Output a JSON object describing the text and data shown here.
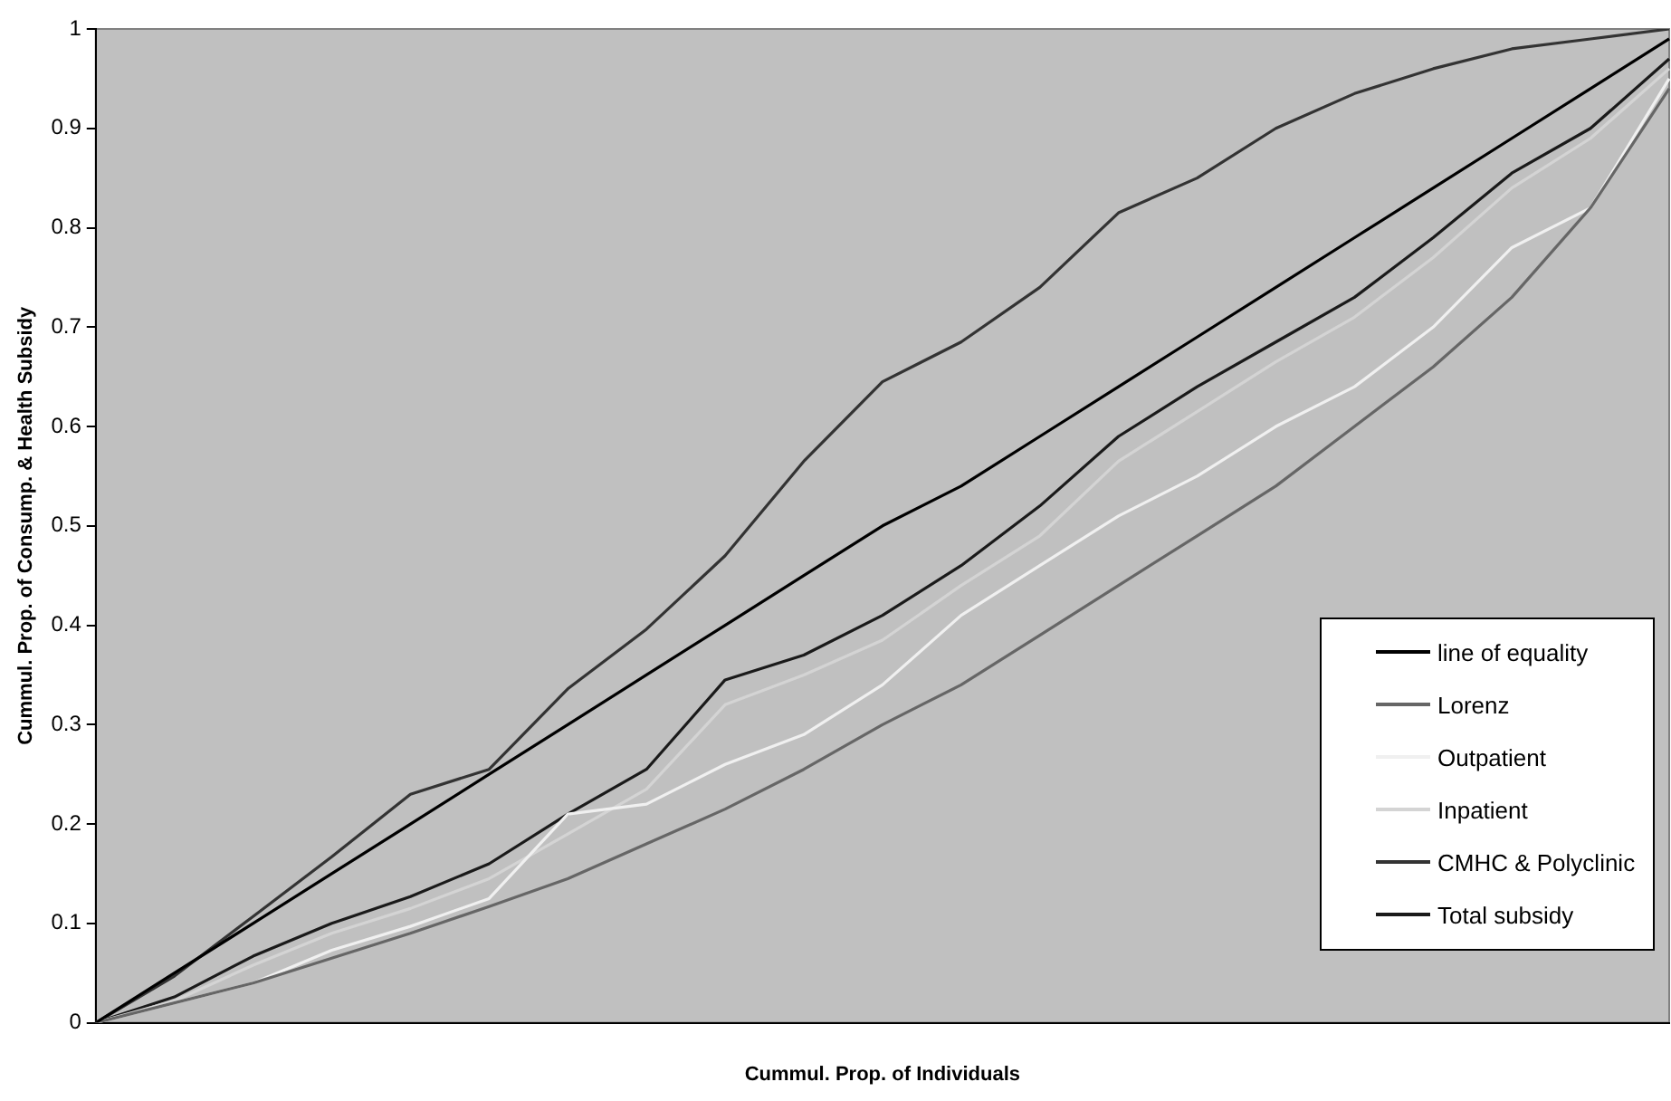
{
  "chart_data": {
    "type": "line",
    "xlabel": "Cummul. Prop. of Individuals",
    "ylabel": "Cummul. Prop. of Consump. & Health Subsidy",
    "categories": [
      null,
      null,
      null,
      null,
      null,
      null,
      null,
      null,
      null,
      null,
      null,
      null,
      null,
      null,
      null,
      null,
      null,
      null,
      null,
      null,
      null
    ],
    "ylim": [
      0,
      1
    ],
    "yticks": [
      0,
      0.1,
      0.2,
      0.3,
      0.4,
      0.5,
      0.6,
      0.7,
      0.8,
      0.9,
      1
    ],
    "grid": false,
    "legend": "bottom right",
    "tick_labels": "y",
    "marker": "none",
    "line_style": "solid",
    "series": [
      {
        "name": "line of equality",
        "color": "#000000",
        "values": [
          0,
          0.05,
          0.1,
          0.15,
          0.2,
          0.25,
          0.3,
          0.35,
          0.4,
          0.45,
          0.5,
          0.54,
          0.59,
          0.64,
          0.69,
          0.74,
          0.79,
          0.84,
          0.89,
          0.94,
          0.99
        ]
      },
      {
        "name": "Lorenz",
        "color": "#666666",
        "values": [
          0,
          0.02,
          0.04,
          0.065,
          0.09,
          0.117,
          0.145,
          0.18,
          0.215,
          0.255,
          0.3,
          0.34,
          0.39,
          0.44,
          0.49,
          0.54,
          0.6,
          0.66,
          0.73,
          0.82,
          0.94
        ]
      },
      {
        "name": "Outpatient",
        "color": "#f0f0f0",
        "values": [
          0,
          0.02,
          0.04,
          0.073,
          0.097,
          0.125,
          0.21,
          0.22,
          0.26,
          0.29,
          0.34,
          0.41,
          0.46,
          0.51,
          0.55,
          0.6,
          0.64,
          0.7,
          0.78,
          0.82,
          0.95
        ]
      },
      {
        "name": "Inpatient",
        "color": "#d4d4d4",
        "values": [
          0,
          0.022,
          0.058,
          0.09,
          0.115,
          0.145,
          0.19,
          0.235,
          0.32,
          0.35,
          0.385,
          0.44,
          0.49,
          0.565,
          0.615,
          0.665,
          0.71,
          0.77,
          0.84,
          0.89,
          0.96
        ]
      },
      {
        "name": "CMHC & Polyclinic",
        "color": "#333333",
        "values": [
          0,
          0.047,
          0.107,
          0.167,
          0.23,
          0.255,
          0.336,
          0.396,
          0.47,
          0.565,
          0.645,
          0.685,
          0.74,
          0.815,
          0.85,
          0.9,
          0.935,
          0.96,
          0.98,
          0.99,
          1
        ]
      },
      {
        "name": "Total subsidy",
        "color": "#1a1a1a",
        "values": [
          0,
          0.026,
          0.067,
          0.1,
          0.127,
          0.16,
          0.21,
          0.255,
          0.345,
          0.37,
          0.41,
          0.46,
          0.52,
          0.59,
          0.64,
          0.685,
          0.73,
          0.79,
          0.855,
          0.9,
          0.97
        ]
      }
    ]
  }
}
